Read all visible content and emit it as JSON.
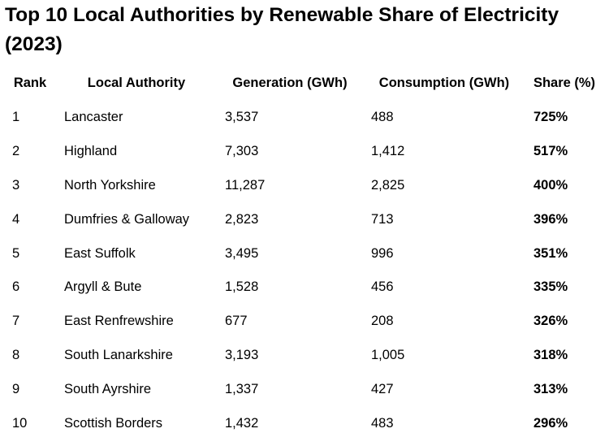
{
  "chart_data": {
    "type": "table",
    "title": "Top 10 Local Authorities by Renewable Share of Electricity (2023)",
    "columns": [
      "Rank",
      "Local Authority",
      "Generation (GWh)",
      "Consumption (GWh)",
      "Share (%)"
    ],
    "rows": [
      [
        "1",
        "Lancaster",
        "3,537",
        "488",
        "725%"
      ],
      [
        "2",
        "Highland",
        "7,303",
        "1,412",
        "517%"
      ],
      [
        "3",
        "North Yorkshire",
        "11,287",
        "2,825",
        "400%"
      ],
      [
        "4",
        "Dumfries & Galloway",
        "2,823",
        "713",
        "396%"
      ],
      [
        "5",
        "East Suffolk",
        "3,495",
        "996",
        "351%"
      ],
      [
        "6",
        "Argyll & Bute",
        "1,528",
        "456",
        "335%"
      ],
      [
        "7",
        "East Renfrewshire",
        "677",
        "208",
        "326%"
      ],
      [
        "8",
        "South Lanarkshire",
        "3,193",
        "1,005",
        "318%"
      ],
      [
        "9",
        "South Ayrshire",
        "1,337",
        "427",
        "313%"
      ],
      [
        "10",
        "Scottish Borders",
        "1,432",
        "483",
        "296%"
      ]
    ]
  }
}
